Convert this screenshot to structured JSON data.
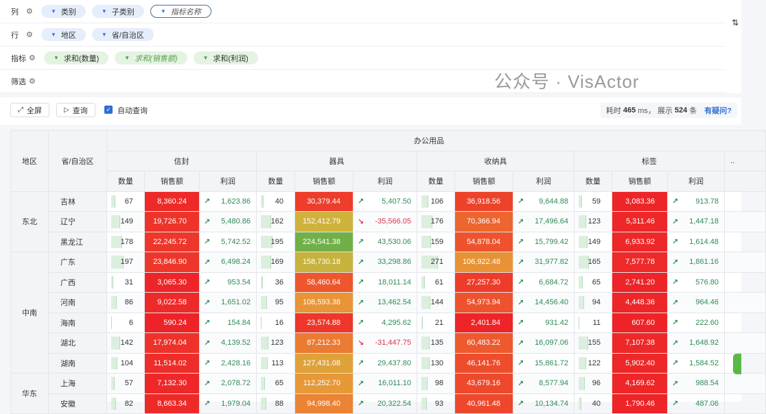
{
  "config": {
    "columns": {
      "label": "列",
      "fields": [
        "类别",
        "子类别",
        "指标名称"
      ]
    },
    "rows": {
      "label": "行",
      "fields": [
        "地区",
        "省/自治区"
      ]
    },
    "metrics": {
      "label": "指标",
      "fields": [
        "求和(数量)",
        "求和(销售额)",
        "求和(利润)"
      ]
    },
    "filter": {
      "label": "筛选"
    }
  },
  "toolbar": {
    "fullscreen": "全屏",
    "query": "查询",
    "auto_query": "自动查询",
    "auto_query_checked": true,
    "stats_prefix": "耗时",
    "time": "465",
    "time_unit": "ms，",
    "shown_prefix": "展示",
    "count": "524",
    "count_unit": "条",
    "help": "有疑问?"
  },
  "table": {
    "row_headers": [
      "地区",
      "省/自治区"
    ],
    "category": "办公用品",
    "subcategories": [
      "信封",
      "器具",
      "收纳具",
      "标签"
    ],
    "more": "..",
    "metric_names": [
      "数量",
      "销售额",
      "利润"
    ],
    "colors": {
      "positive": "#2e8b57",
      "negative": "#d9364f",
      "bar": "#dcefdf"
    },
    "regions": [
      {
        "name": "东北",
        "provinces": [
          {
            "name": "吉林",
            "cells": [
              [
                "67",
                "8,360.24",
                "1,623.86"
              ],
              [
                "40",
                "30,379.44",
                "5,407.50"
              ],
              [
                "106",
                "36,918.56",
                "9,644.88"
              ],
              [
                "59",
                "3,083.36",
                "913.78"
              ]
            ]
          },
          {
            "name": "辽宁",
            "cells": [
              [
                "149",
                "19,726.70",
                "5,480.86"
              ],
              [
                "162",
                "152,412.79",
                "-35,566.05"
              ],
              [
                "176",
                "70,366.94",
                "17,496.64"
              ],
              [
                "123",
                "5,311.46",
                "1,447.18"
              ]
            ]
          },
          {
            "name": "黑龙江",
            "cells": [
              [
                "178",
                "22,245.72",
                "5,742.52"
              ],
              [
                "195",
                "224,541.38",
                "43,530.06"
              ],
              [
                "159",
                "54,878.04",
                "15,799.42"
              ],
              [
                "149",
                "6,933.92",
                "1,614.48"
              ]
            ]
          }
        ]
      },
      {
        "name": "中南",
        "provinces": [
          {
            "name": "广东",
            "cells": [
              [
                "197",
                "23,846.90",
                "6,498.24"
              ],
              [
                "169",
                "158,730.18",
                "33,298.86"
              ],
              [
                "271",
                "106,922.48",
                "31,977.82"
              ],
              [
                "165",
                "7,577.78",
                "1,861.16"
              ]
            ]
          },
          {
            "name": "广西",
            "cells": [
              [
                "31",
                "3,065.30",
                "953.54"
              ],
              [
                "36",
                "58,460.64",
                "18,011.14"
              ],
              [
                "61",
                "27,257.30",
                "6,684.72"
              ],
              [
                "65",
                "2,741.20",
                "576.80"
              ]
            ]
          },
          {
            "name": "河南",
            "cells": [
              [
                "86",
                "9,022.58",
                "1,651.02"
              ],
              [
                "95",
                "108,593.38",
                "13,462.54"
              ],
              [
                "144",
                "54,973.94",
                "14,456.40"
              ],
              [
                "94",
                "4,448.36",
                "964.46"
              ]
            ]
          },
          {
            "name": "海南",
            "cells": [
              [
                "6",
                "590.24",
                "154.84"
              ],
              [
                "16",
                "23,574.88",
                "4,295.62"
              ],
              [
                "21",
                "2,401.84",
                "931.42"
              ],
              [
                "11",
                "607.60",
                "222.60"
              ]
            ]
          },
          {
            "name": "湖北",
            "cells": [
              [
                "142",
                "17,974.04",
                "4,139.52"
              ],
              [
                "123",
                "87,212.33",
                "-31,447.75"
              ],
              [
                "135",
                "60,483.22",
                "16,097.06"
              ],
              [
                "155",
                "7,107.38",
                "1,648.92"
              ]
            ]
          },
          {
            "name": "湖南",
            "cells": [
              [
                "104",
                "11,514.02",
                "2,428.16"
              ],
              [
                "113",
                "127,431.08",
                "29,437.80"
              ],
              [
                "130",
                "46,141.76",
                "15,861.72"
              ],
              [
                "122",
                "5,902.40",
                "1,584.52"
              ]
            ]
          }
        ]
      },
      {
        "name": "华东",
        "provinces": [
          {
            "name": "上海",
            "cells": [
              [
                "57",
                "7,132.30",
                "2,078.72"
              ],
              [
                "65",
                "112,252.70",
                "16,011.10"
              ],
              [
                "98",
                "43,679.16",
                "8,577.94"
              ],
              [
                "96",
                "4,169.62",
                "988.54"
              ]
            ]
          },
          {
            "name": "安徽",
            "cells": [
              [
                "82",
                "8,663.34",
                "1,979.04"
              ],
              [
                "88",
                "94,998.40",
                "20,322.54"
              ],
              [
                "93",
                "40,961.48",
                "10,134.74"
              ],
              [
                "40",
                "1,790.46",
                "487.06"
              ]
            ]
          }
        ]
      }
    ]
  },
  "watermark": "公众号 · VisActor"
}
